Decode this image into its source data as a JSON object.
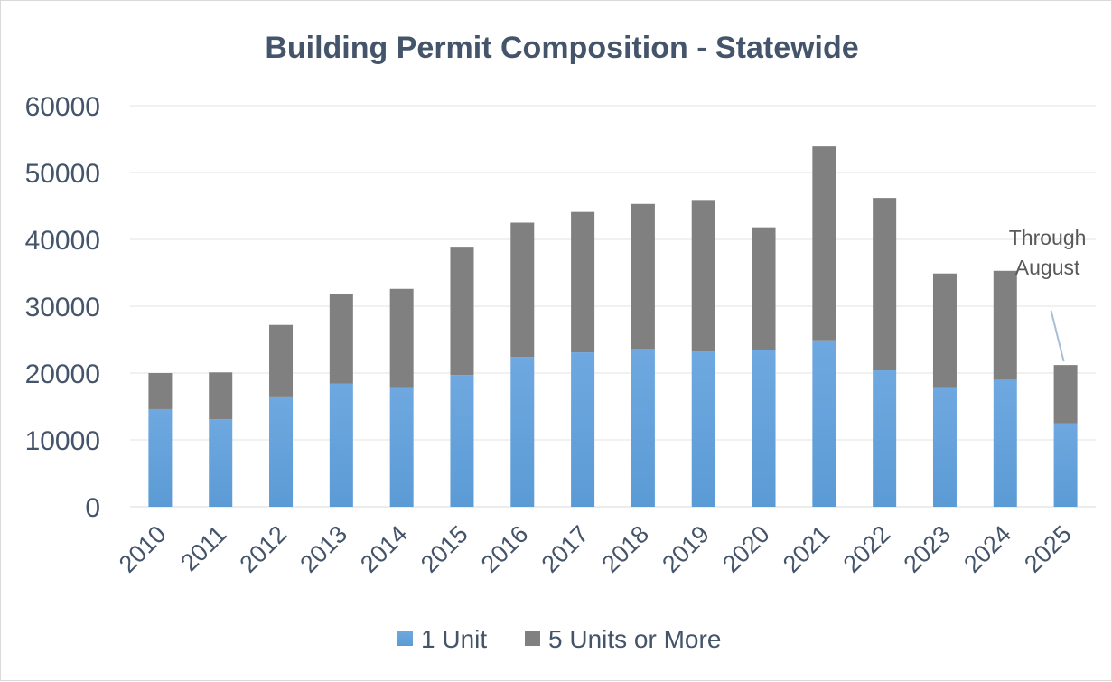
{
  "chart_data": {
    "type": "bar",
    "stacked": true,
    "title": "Building Permit Composition - Statewide",
    "xlabel": "",
    "ylabel": "",
    "ylim": [
      0,
      60000
    ],
    "yticks": [
      0,
      10000,
      20000,
      30000,
      40000,
      50000,
      60000
    ],
    "grid": true,
    "legend_position": "bottom",
    "categories": [
      "2010",
      "2011",
      "2012",
      "2013",
      "2014",
      "2015",
      "2016",
      "2017",
      "2018",
      "2019",
      "2020",
      "2021",
      "2022",
      "2023",
      "2024",
      "2025"
    ],
    "series": [
      {
        "name": "1 Unit",
        "color": "#5b9bd5",
        "values": [
          14600,
          13100,
          16500,
          18400,
          17900,
          19700,
          22400,
          23100,
          23600,
          23200,
          23500,
          24900,
          20400,
          17900,
          19000,
          12500
        ]
      },
      {
        "name": "5 Units or More",
        "color": "#808080",
        "values": [
          5400,
          7000,
          10700,
          13400,
          14700,
          19200,
          20100,
          21000,
          21700,
          22700,
          18300,
          29000,
          25800,
          17000,
          16300,
          8700
        ]
      }
    ],
    "annotations": [
      {
        "text_lines": [
          "Through",
          "August"
        ],
        "target_category": "2025"
      }
    ]
  }
}
